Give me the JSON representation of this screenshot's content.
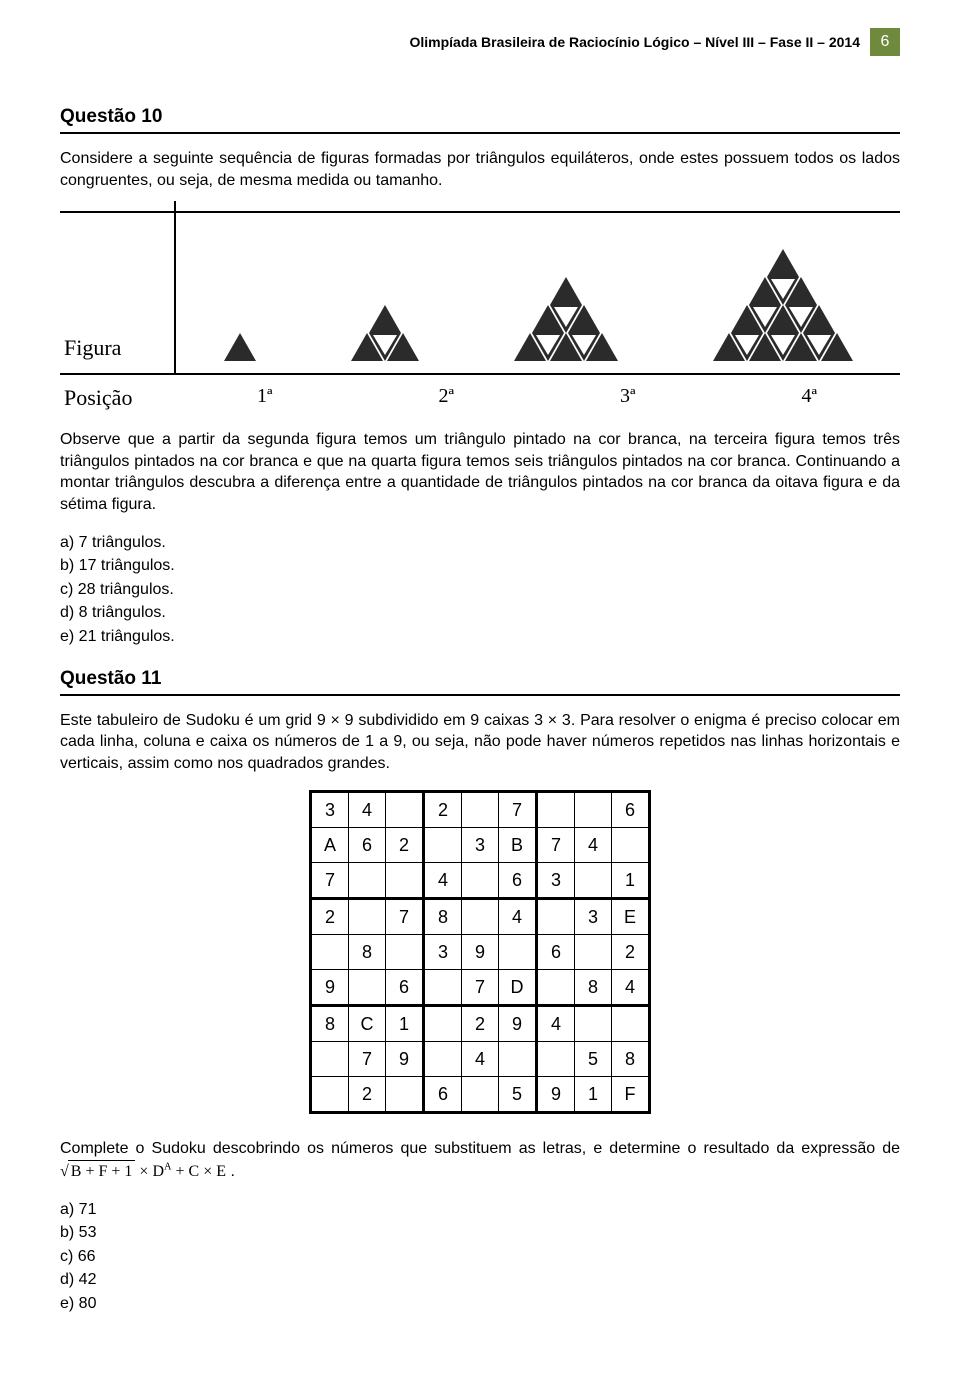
{
  "header": {
    "title": "Olimpíada Brasileira de Raciocínio Lógico – Nível III – Fase II – 2014",
    "page_number": "6"
  },
  "q10": {
    "title": "Questão 10",
    "p1": "Considere a seguinte sequência de figuras formadas por triângulos equiláteros, onde estes possuem todos os lados congruentes, ou seja, de mesma medida ou tamanho.",
    "figure_label": "Figura",
    "position_label": "Posição",
    "positions": [
      "1ª",
      "2ª",
      "3ª",
      "4ª"
    ],
    "p2": "Observe que a partir da segunda figura temos um triângulo pintado na cor branca, na terceira figura temos três triângulos pintados na cor branca e que na quarta figura temos seis triângulos pintados na cor branca. Continuando a montar triângulos descubra a diferença entre a quantidade de triângulos pintados na cor branca da oitava figura e da sétima figura.",
    "options": {
      "a": "a) 7 triângulos.",
      "b": "b) 17 triângulos.",
      "c": "c) 28 triângulos.",
      "d": "d) 8 triângulos.",
      "e": "e) 21 triângulos."
    }
  },
  "q11": {
    "title": "Questão 11",
    "p1": "Este tabuleiro de Sudoku é um grid 9 × 9 subdividido em 9 caixas 3 × 3. Para resolver o enigma é preciso colocar em cada linha, coluna e caixa os números de 1 a 9, ou seja, não pode haver números repetidos nas linhas horizontais e verticais, assim como nos quadrados grandes.",
    "grid": [
      [
        "3",
        "4",
        "",
        "2",
        "",
        "7",
        "",
        "",
        "6"
      ],
      [
        "A",
        "6",
        "2",
        "",
        "3",
        "B",
        "7",
        "4",
        ""
      ],
      [
        "7",
        "",
        "",
        "4",
        "",
        "6",
        "3",
        "",
        "1"
      ],
      [
        "2",
        "",
        "7",
        "8",
        "",
        "4",
        "",
        "3",
        "E"
      ],
      [
        "",
        "8",
        "",
        "3",
        "9",
        "",
        "6",
        "",
        "2"
      ],
      [
        "9",
        "",
        "6",
        "",
        "7",
        "D",
        "",
        "8",
        "4"
      ],
      [
        "8",
        "C",
        "1",
        "",
        "2",
        "9",
        "4",
        "",
        ""
      ],
      [
        "",
        "7",
        "9",
        "",
        "4",
        "",
        "",
        "5",
        "8"
      ],
      [
        "",
        "2",
        "",
        "6",
        "",
        "5",
        "9",
        "1",
        "F"
      ]
    ],
    "p2_prefix": "Complete o Sudoku descobrindo os números que substituem as letras, e determine o resultado da expressão de ",
    "expr_under_sqrt": "B + F + 1",
    "expr_times": "×",
    "expr_D": "D",
    "expr_A": "A",
    "expr_plus": "+",
    "expr_C": "C",
    "expr_E": "E",
    "p2_suffix": " .",
    "options": {
      "a": "a) 71",
      "b": "b) 53",
      "c": "c) 66",
      "d": "d) 42",
      "e": "e) 80"
    }
  },
  "colors": {
    "header_bg": "#6f8a3d",
    "triangle_fill": "#2b2b2b"
  }
}
